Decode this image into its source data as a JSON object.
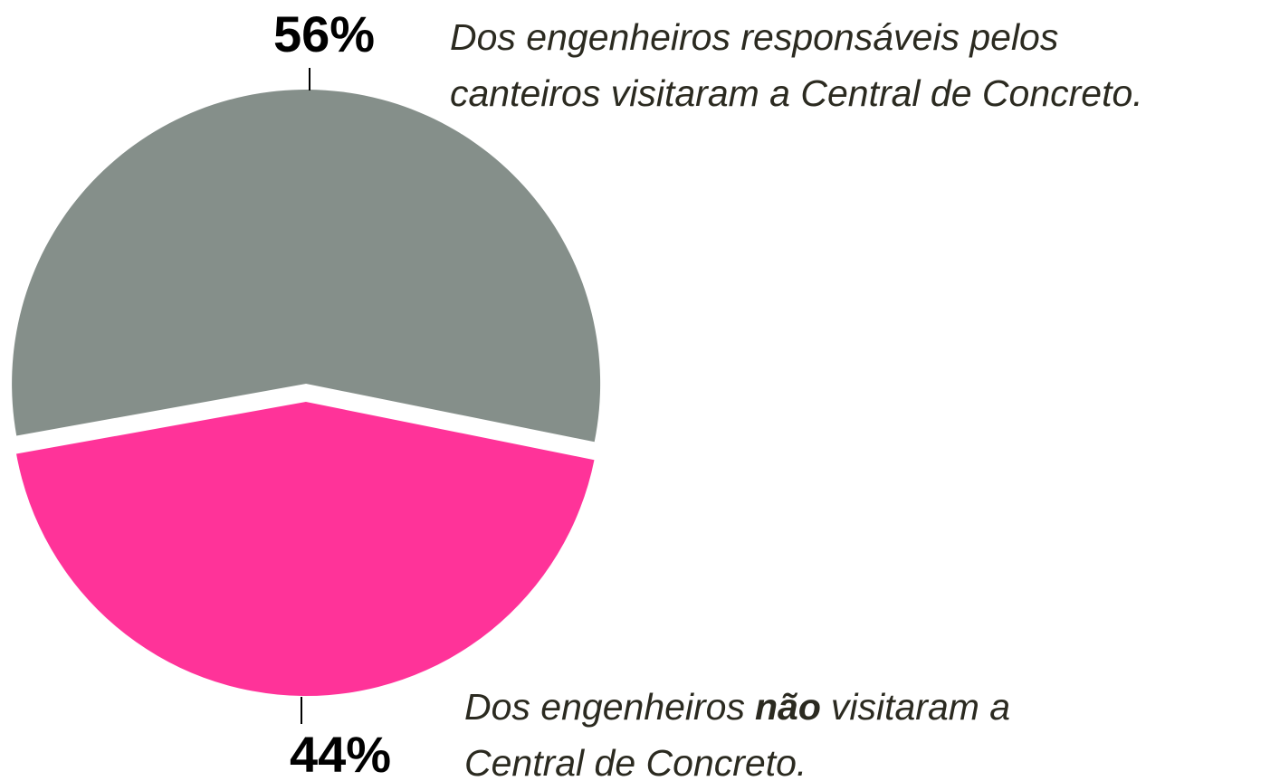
{
  "chart_data": {
    "type": "pie",
    "values": [
      56,
      44
    ],
    "value_labels": [
      "56%",
      "44%"
    ],
    "colors": [
      "#858f8a",
      "#ff3399"
    ],
    "annotations": [
      {
        "lines": [
          [
            "Dos engenheiros responsáveis pelos"
          ],
          [
            "canteiros visitaram a Central de Concreto."
          ]
        ]
      },
      {
        "lines": [
          [
            "Dos engenheiros",
            "não",
            "visitaram a"
          ],
          [
            "Central de Concreto."
          ]
        ]
      }
    ]
  }
}
